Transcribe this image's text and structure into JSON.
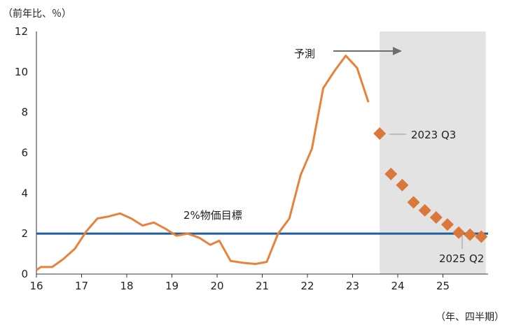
{
  "chart_data": {
    "type": "line",
    "y_unit_label": "（前年比、％）",
    "x_unit_label": "（年、四半期）",
    "ylim": [
      0,
      12
    ],
    "y_ticks": [
      0,
      2,
      4,
      6,
      8,
      10,
      12
    ],
    "x_ticks": [
      16,
      17,
      18,
      19,
      20,
      21,
      22,
      23,
      24,
      25
    ],
    "x_range": [
      2016.0,
      2026.0
    ],
    "grid": false,
    "forecast_region": {
      "x_start": 2023.6,
      "x_end": 2025.95,
      "color": "#e3e3e3"
    },
    "target_line": {
      "value": 2.0,
      "label": "2%物価目標",
      "color": "#1f5f9e"
    },
    "series": [
      {
        "kind": "actual",
        "color": "#e8823a",
        "points": [
          [
            2016.0,
            0.2
          ],
          [
            2016.1,
            0.35
          ],
          [
            2016.35,
            0.35
          ],
          [
            2016.6,
            0.75
          ],
          [
            2016.85,
            1.25
          ],
          [
            2017.1,
            2.1
          ],
          [
            2017.35,
            2.75
          ],
          [
            2017.6,
            2.85
          ],
          [
            2017.85,
            3.0
          ],
          [
            2018.1,
            2.75
          ],
          [
            2018.35,
            2.4
          ],
          [
            2018.6,
            2.55
          ],
          [
            2018.85,
            2.25
          ],
          [
            2019.1,
            1.9
          ],
          [
            2019.35,
            2.0
          ],
          [
            2019.6,
            1.8
          ],
          [
            2019.85,
            1.45
          ],
          [
            2020.05,
            1.65
          ],
          [
            2020.3,
            0.65
          ],
          [
            2020.6,
            0.55
          ],
          [
            2020.85,
            0.5
          ],
          [
            2021.1,
            0.6
          ],
          [
            2021.35,
            2.0
          ],
          [
            2021.6,
            2.75
          ],
          [
            2021.85,
            4.9
          ],
          [
            2022.1,
            6.2
          ],
          [
            2022.35,
            9.2
          ],
          [
            2022.6,
            10.05
          ],
          [
            2022.85,
            10.8
          ],
          [
            2023.1,
            10.2
          ],
          [
            2023.35,
            8.5
          ]
        ]
      },
      {
        "kind": "forecast",
        "color": "#d9783a",
        "points": [
          [
            2023.6,
            6.95
          ],
          [
            2023.85,
            4.95
          ],
          [
            2024.1,
            4.4
          ],
          [
            2024.35,
            3.55
          ],
          [
            2024.6,
            3.15
          ],
          [
            2024.85,
            2.8
          ],
          [
            2025.1,
            2.45
          ],
          [
            2025.35,
            2.05
          ],
          [
            2025.6,
            1.95
          ],
          [
            2025.85,
            1.85
          ]
        ]
      }
    ],
    "annotations": [
      {
        "text": "予測",
        "role": "forecast-label"
      },
      {
        "text": "2023 Q3",
        "role": "first-forecast-point"
      },
      {
        "text": "2025 Q2",
        "role": "target-reach-point"
      }
    ]
  }
}
